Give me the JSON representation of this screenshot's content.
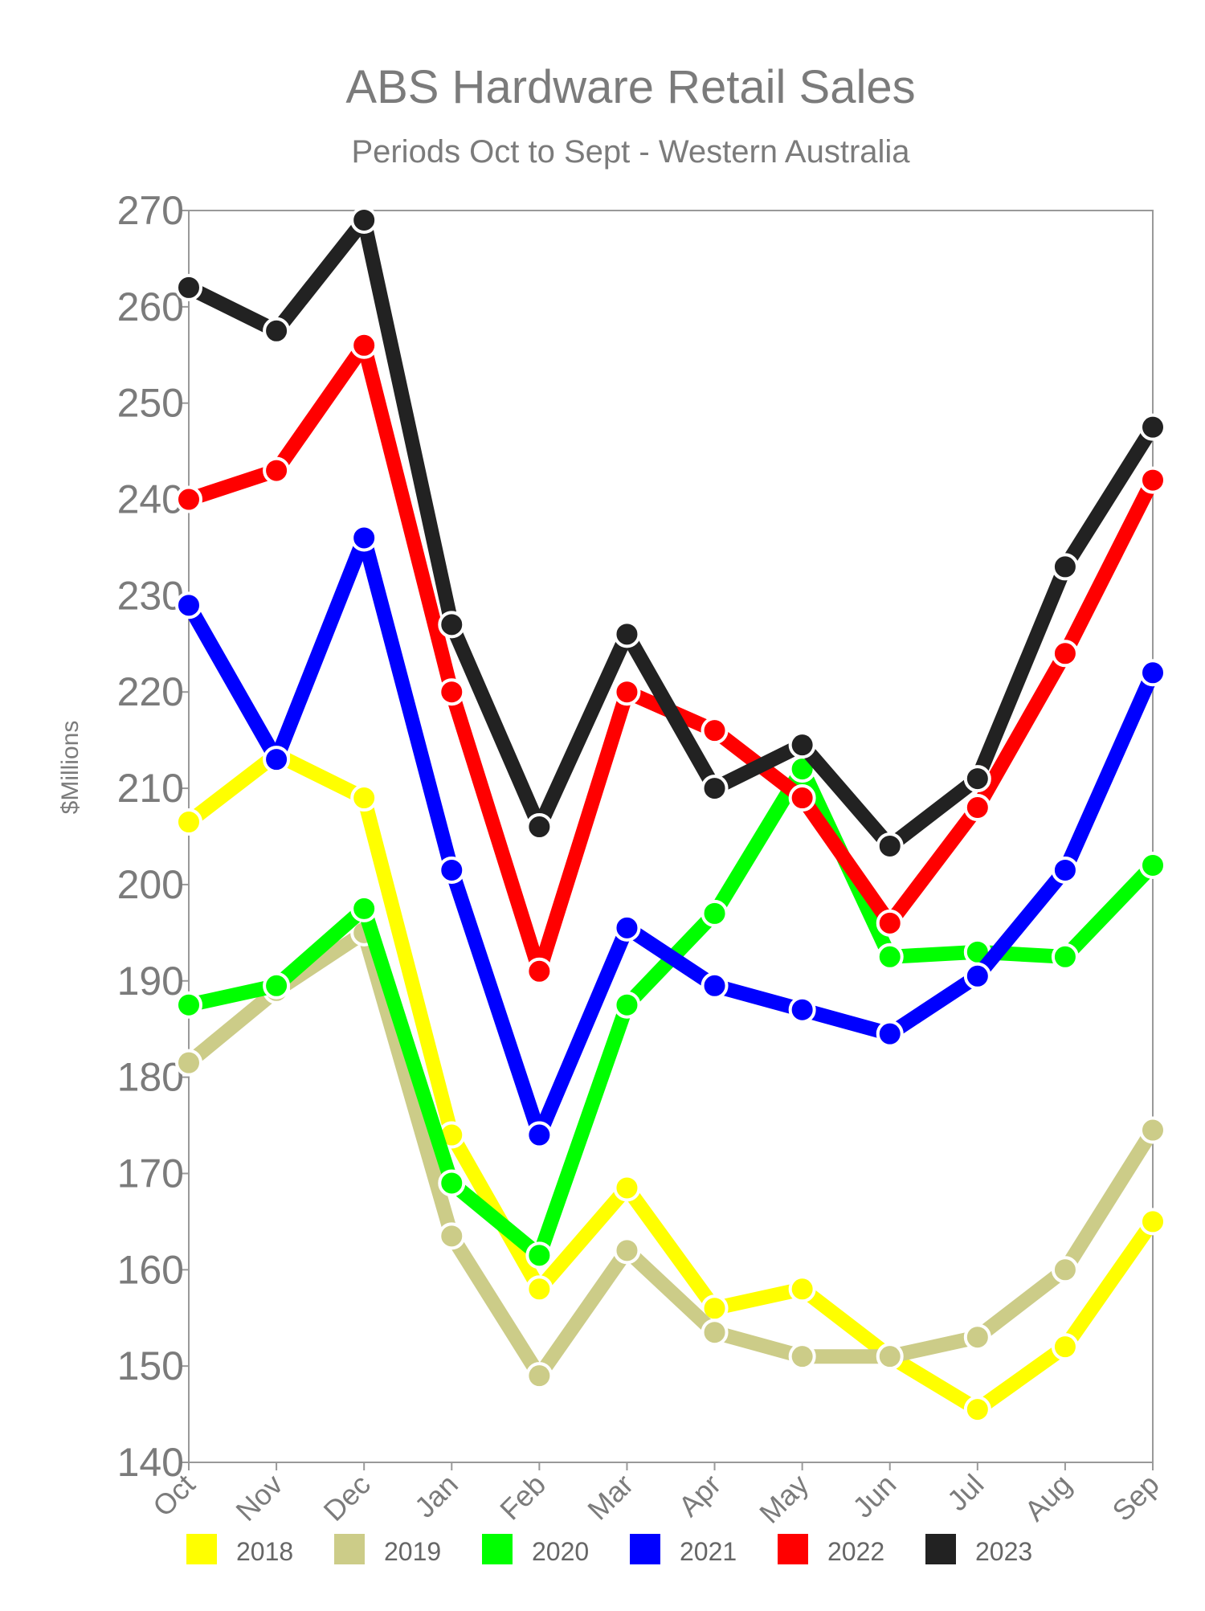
{
  "chart_data": {
    "type": "line",
    "title": "ABS Hardware Retail Sales",
    "subtitle": "Periods Oct to Sept - Western Australia",
    "ylabel": "$Millions",
    "xlabel": "",
    "categories": [
      "Oct",
      "Nov",
      "Dec",
      "Jan",
      "Feb",
      "Mar",
      "Apr",
      "May",
      "Jun",
      "Jul",
      "Aug",
      "Sep"
    ],
    "ylim": [
      140,
      270
    ],
    "yticks": [
      "140",
      "150",
      "160",
      "170",
      "180",
      "190",
      "200",
      "210",
      "220",
      "230",
      "240",
      "250",
      "260",
      "270"
    ],
    "grid": false,
    "legend_position": "bottom",
    "series": [
      {
        "name": "2018",
        "color": "#ffff00",
        "values": [
          206.5,
          213.5,
          209,
          174,
          158,
          168.5,
          156,
          158,
          151,
          145.5,
          152,
          165
        ]
      },
      {
        "name": "2019",
        "color": "#cccc88",
        "values": [
          181.5,
          189,
          195,
          163.5,
          149,
          162,
          153.5,
          151,
          151,
          153,
          160,
          174.5
        ]
      },
      {
        "name": "2020",
        "color": "#00ff00",
        "values": [
          187.5,
          189.5,
          197.5,
          169,
          161.5,
          187.5,
          197,
          212,
          192.5,
          193,
          192.5,
          202
        ]
      },
      {
        "name": "2021",
        "color": "#0000ff",
        "values": [
          229,
          213,
          236,
          201.5,
          174,
          195.5,
          189.5,
          187,
          184.5,
          190.5,
          201.5,
          222
        ]
      },
      {
        "name": "2022",
        "color": "#ff0000",
        "values": [
          240,
          243,
          256,
          220,
          191,
          220,
          216,
          209,
          196,
          208,
          224,
          242
        ]
      },
      {
        "name": "2023",
        "color": "#222222",
        "values": [
          262,
          257.5,
          269,
          227,
          206,
          226,
          210,
          214.5,
          204,
          211,
          233,
          247.5
        ]
      }
    ]
  }
}
